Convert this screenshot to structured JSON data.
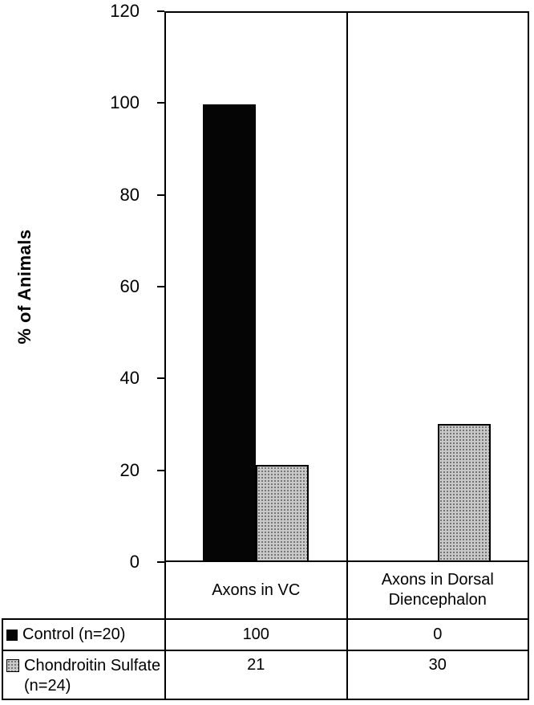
{
  "chart_data": {
    "type": "bar",
    "title": "",
    "xlabel": "",
    "ylabel": "% of Animals",
    "ylim": [
      0,
      120
    ],
    "ytick_interval": 20,
    "yticks": [
      120,
      100,
      80,
      60,
      40,
      20,
      0
    ],
    "categories": [
      "Axons in VC",
      "Axons in Dorsal Diencephalon"
    ],
    "series": [
      {
        "name": "Control (n=20)",
        "values": [
          100,
          0
        ],
        "color": "#000000",
        "pattern": "solid"
      },
      {
        "name": "Chondroitin Sulfate (n=24)",
        "values": [
          21,
          30
        ],
        "color": "#c9c9c9",
        "pattern": "stipple"
      }
    ],
    "grid": false,
    "legend_position": "data-table-left"
  },
  "table": {
    "rows": [
      {
        "label": "Control (n=20)",
        "values": [
          "100",
          "0"
        ]
      },
      {
        "label": "Chondroitin Sulfate (n=24)",
        "values": [
          "21",
          "30"
        ]
      }
    ]
  }
}
